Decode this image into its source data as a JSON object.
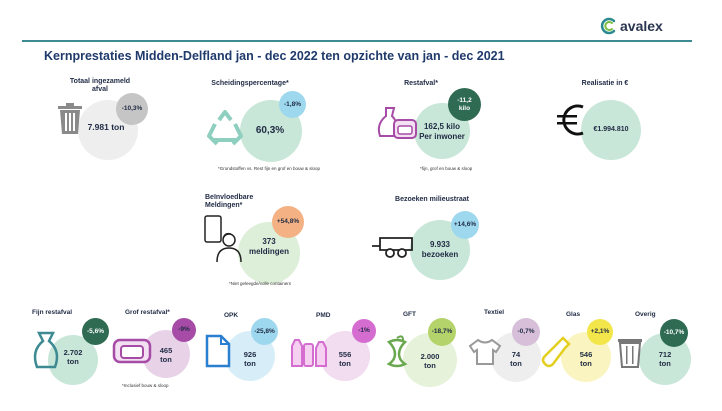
{
  "brand": {
    "name": "avalex"
  },
  "title": "Kernprestaties Midden-Delfland jan - dec 2022 ten opzichte van jan - dec 2021",
  "kpis": {
    "totaal": {
      "label_1": "Totaal ingezameld",
      "label_2": "afval",
      "value": "7.981 ton",
      "change": "-10,3%"
    },
    "scheiding": {
      "label": "Scheidingspercentage*",
      "value": "60,3%",
      "change": "-1,8%",
      "note": "*Grondstoffen vs. Rest fijn en grof en bouw & sloop"
    },
    "restafval": {
      "label": "Restafval*",
      "value_1": "162,5 kilo",
      "value_2": "Per inwoner",
      "change_1": "-11,2",
      "change_2": "kilo",
      "note": "*fijn, grof en bouw & sloop"
    },
    "realisatie": {
      "label": "Realisatie in €",
      "value": "€1.994.810"
    },
    "meldingen": {
      "label_1": "Beïnvloedbare",
      "label_2": "Meldingen*",
      "value_1": "373",
      "value_2": "meldingen",
      "change": "+54,8%",
      "note": "*Niet geleegde/volle containers"
    },
    "milieustraat": {
      "label": "Bezoeken milieustraat",
      "value_1": "9.933",
      "value_2": "bezoeken",
      "change": "+14,6%"
    }
  },
  "streams": [
    {
      "name": "Fijn restafval",
      "value": "2.702",
      "unit": "ton",
      "change": "-5,6%"
    },
    {
      "name": "Grof restafval*",
      "value": "465",
      "unit": "ton",
      "change": "-9%",
      "note": "*Inclusief bouw & sloop"
    },
    {
      "name": "OPK",
      "value": "926",
      "unit": "ton",
      "change": "-25,8%"
    },
    {
      "name": "PMD",
      "value": "556",
      "unit": "ton",
      "change": "-1%"
    },
    {
      "name": "GFT",
      "value": "2.000",
      "unit": "ton",
      "change": "-18,7%"
    },
    {
      "name": "Textiel",
      "value": "74",
      "unit": "ton",
      "change": "-0,7%"
    },
    {
      "name": "Glas",
      "value": "546",
      "unit": "ton",
      "change": "+2,1%"
    },
    {
      "name": "Overig",
      "value": "712",
      "unit": "ton",
      "change": "-10,7%"
    }
  ],
  "colors": {
    "teal": "#3d8a93",
    "navy": "#1f3a6b",
    "grey": "#c5c5c5",
    "light_grey": "#eeeeee",
    "mint": "#c9e7d8",
    "light_blue": "#9ed8ee",
    "dark_green": "#2f6b52",
    "orange": "#f4b183",
    "green_light": "#ddefd8",
    "purple": "#a64ca6",
    "yellow": "#f2e64a"
  }
}
